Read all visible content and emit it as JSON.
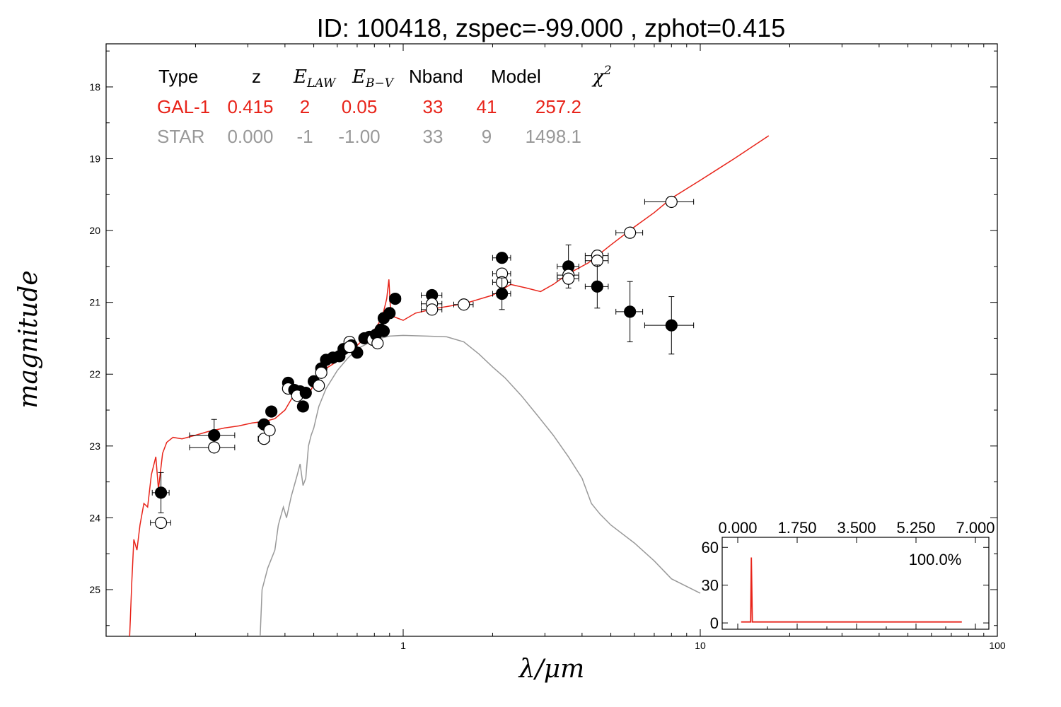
{
  "chart_data": {
    "type": "scatter",
    "title": "ID:  100418, zspec=-99.000 , zphot=0.415",
    "xlabel": "λ/μm",
    "ylabel": "magnitude",
    "xscale": "log",
    "xlim": [
      0.1,
      100
    ],
    "ylim": [
      25.65,
      17.4
    ],
    "x_ticks": [
      "1",
      "10",
      "100"
    ],
    "y_ticks": [
      "18",
      "19",
      "20",
      "21",
      "22",
      "23",
      "24",
      "25"
    ],
    "grid": false,
    "legend_table": {
      "headers": [
        "Type",
        "z",
        "E",
        "LAW",
        "E",
        "B−V",
        "Nband",
        "Model",
        "χ",
        "2"
      ],
      "rows": [
        {
          "cells": [
            "GAL-1",
            "0.415",
            "2",
            "0.05",
            "33",
            "41",
            "257.2"
          ],
          "color": "#e8241a"
        },
        {
          "cells": [
            "STAR",
            "0.000",
            "-1",
            "-1.00",
            "33",
            "9",
            "1498.1"
          ],
          "color": "#999999"
        }
      ]
    },
    "series": [
      {
        "name": "GAL-1",
        "color": "#e8241a",
        "points": [
          [
            0.12,
            25.65
          ],
          [
            0.122,
            24.9
          ],
          [
            0.124,
            24.3
          ],
          [
            0.127,
            24.45
          ],
          [
            0.13,
            24.1
          ],
          [
            0.134,
            23.8
          ],
          [
            0.138,
            23.85
          ],
          [
            0.142,
            23.4
          ],
          [
            0.147,
            23.15
          ],
          [
            0.15,
            23.6
          ],
          [
            0.155,
            23.1
          ],
          [
            0.16,
            22.95
          ],
          [
            0.168,
            22.88
          ],
          [
            0.18,
            22.9
          ],
          [
            0.2,
            22.85
          ],
          [
            0.22,
            22.8
          ],
          [
            0.25,
            22.75
          ],
          [
            0.28,
            22.72
          ],
          [
            0.31,
            22.68
          ],
          [
            0.34,
            22.66
          ],
          [
            0.37,
            22.62
          ],
          [
            0.4,
            22.5
          ],
          [
            0.42,
            22.35
          ],
          [
            0.45,
            22.2
          ],
          [
            0.48,
            22.28
          ],
          [
            0.5,
            22.15
          ],
          [
            0.52,
            22.05
          ],
          [
            0.55,
            21.92
          ],
          [
            0.6,
            21.82
          ],
          [
            0.65,
            21.68
          ],
          [
            0.7,
            21.6
          ],
          [
            0.75,
            21.48
          ],
          [
            0.8,
            21.38
          ],
          [
            0.83,
            21.28
          ],
          [
            0.86,
            21.12
          ],
          [
            0.88,
            20.95
          ],
          [
            0.895,
            20.68
          ],
          [
            0.905,
            21.05
          ],
          [
            0.93,
            21.2
          ],
          [
            1.0,
            21.25
          ],
          [
            1.1,
            21.15
          ],
          [
            1.3,
            21.08
          ],
          [
            1.6,
            21.02
          ],
          [
            2.0,
            20.9
          ],
          [
            2.3,
            20.75
          ],
          [
            2.6,
            20.8
          ],
          [
            2.9,
            20.85
          ],
          [
            3.2,
            20.75
          ],
          [
            3.6,
            20.6
          ],
          [
            4.2,
            20.45
          ],
          [
            5.0,
            20.2
          ],
          [
            6.0,
            19.95
          ],
          [
            7.0,
            19.75
          ],
          [
            8.0,
            19.55
          ],
          [
            10.0,
            19.3
          ],
          [
            13.0,
            19.0
          ],
          [
            17.0,
            18.68
          ]
        ]
      },
      {
        "name": "STAR",
        "color": "#999999",
        "points": [
          [
            0.33,
            25.65
          ],
          [
            0.335,
            25.0
          ],
          [
            0.35,
            24.7
          ],
          [
            0.37,
            24.45
          ],
          [
            0.38,
            24.1
          ],
          [
            0.395,
            23.85
          ],
          [
            0.405,
            24.0
          ],
          [
            0.42,
            23.7
          ],
          [
            0.44,
            23.4
          ],
          [
            0.45,
            23.25
          ],
          [
            0.46,
            23.55
          ],
          [
            0.47,
            23.45
          ],
          [
            0.48,
            23.0
          ],
          [
            0.49,
            22.85
          ],
          [
            0.5,
            22.75
          ],
          [
            0.52,
            22.45
          ],
          [
            0.55,
            22.2
          ],
          [
            0.6,
            21.95
          ],
          [
            0.65,
            21.78
          ],
          [
            0.7,
            21.65
          ],
          [
            0.8,
            21.52
          ],
          [
            0.9,
            21.47
          ],
          [
            1.0,
            21.46
          ],
          [
            1.2,
            21.47
          ],
          [
            1.4,
            21.48
          ],
          [
            1.6,
            21.55
          ],
          [
            1.8,
            21.72
          ],
          [
            2.0,
            21.9
          ],
          [
            2.2,
            22.05
          ],
          [
            2.5,
            22.3
          ],
          [
            2.8,
            22.55
          ],
          [
            3.2,
            22.85
          ],
          [
            3.6,
            23.15
          ],
          [
            4.0,
            23.45
          ],
          [
            4.3,
            23.8
          ],
          [
            4.6,
            23.95
          ],
          [
            5.0,
            24.1
          ],
          [
            6.0,
            24.35
          ],
          [
            7.0,
            24.6
          ],
          [
            8.0,
            24.85
          ],
          [
            10.0,
            25.05
          ]
        ]
      }
    ],
    "observed": [
      {
        "x": 0.153,
        "y": 23.65,
        "xerr": 0.01,
        "yerr": 0.28,
        "open": false
      },
      {
        "x": 0.153,
        "y": 24.07,
        "xerr": 0.012,
        "yerr": 0.0,
        "open": true
      },
      {
        "x": 0.231,
        "y": 22.85,
        "xerr": 0.04,
        "yerr": 0.22,
        "open": false
      },
      {
        "x": 0.231,
        "y": 23.02,
        "xerr": 0.04,
        "yerr": 0.0,
        "open": true
      },
      {
        "x": 0.34,
        "y": 22.7,
        "xerr": 0.015,
        "yerr": 0.0,
        "open": false
      },
      {
        "x": 0.34,
        "y": 22.9,
        "xerr": 0.015,
        "yerr": 0.0,
        "open": true
      },
      {
        "x": 0.36,
        "y": 22.52,
        "xerr": 0.012,
        "yerr": 0.0,
        "open": false
      },
      {
        "x": 0.355,
        "y": 22.78,
        "xerr": 0.012,
        "yerr": 0.0,
        "open": true
      },
      {
        "x": 0.41,
        "y": 22.12,
        "xerr": 0.01,
        "yerr": 0.0,
        "open": false
      },
      {
        "x": 0.41,
        "y": 22.2,
        "xerr": 0.01,
        "yerr": 0.0,
        "open": true
      },
      {
        "x": 0.43,
        "y": 22.22,
        "xerr": 0.01,
        "yerr": 0.0,
        "open": false
      },
      {
        "x": 0.45,
        "y": 22.24,
        "xerr": 0.01,
        "yerr": 0.0,
        "open": false
      },
      {
        "x": 0.46,
        "y": 22.45,
        "xerr": 0.01,
        "yerr": 0.0,
        "open": false
      },
      {
        "x": 0.44,
        "y": 22.3,
        "xerr": 0.01,
        "yerr": 0.0,
        "open": true
      },
      {
        "x": 0.47,
        "y": 22.26,
        "xerr": 0.01,
        "yerr": 0.0,
        "open": false
      },
      {
        "x": 0.5,
        "y": 22.1,
        "xerr": 0.012,
        "yerr": 0.0,
        "open": false
      },
      {
        "x": 0.52,
        "y": 22.16,
        "xerr": 0.012,
        "yerr": 0.0,
        "open": true
      },
      {
        "x": 0.53,
        "y": 21.92,
        "xerr": 0.012,
        "yerr": 0.0,
        "open": false
      },
      {
        "x": 0.53,
        "y": 21.98,
        "xerr": 0.012,
        "yerr": 0.0,
        "open": true
      },
      {
        "x": 0.55,
        "y": 21.8,
        "xerr": 0.012,
        "yerr": 0.0,
        "open": false
      },
      {
        "x": 0.58,
        "y": 21.77,
        "xerr": 0.012,
        "yerr": 0.0,
        "open": false
      },
      {
        "x": 0.61,
        "y": 21.75,
        "xerr": 0.012,
        "yerr": 0.0,
        "open": false
      },
      {
        "x": 0.63,
        "y": 21.65,
        "xerr": 0.012,
        "yerr": 0.0,
        "open": false
      },
      {
        "x": 0.66,
        "y": 21.55,
        "xerr": 0.012,
        "yerr": 0.0,
        "open": true
      },
      {
        "x": 0.67,
        "y": 21.6,
        "xerr": 0.012,
        "yerr": 0.0,
        "open": false
      },
      {
        "x": 0.7,
        "y": 21.7,
        "xerr": 0.015,
        "yerr": 0.0,
        "open": false
      },
      {
        "x": 0.66,
        "y": 21.62,
        "xerr": 0.012,
        "yerr": 0.0,
        "open": true
      },
      {
        "x": 0.74,
        "y": 21.5,
        "xerr": 0.015,
        "yerr": 0.0,
        "open": false
      },
      {
        "x": 0.77,
        "y": 21.48,
        "xerr": 0.015,
        "yerr": 0.0,
        "open": false
      },
      {
        "x": 0.79,
        "y": 21.52,
        "xerr": 0.015,
        "yerr": 0.0,
        "open": true
      },
      {
        "x": 0.81,
        "y": 21.45,
        "xerr": 0.015,
        "yerr": 0.0,
        "open": false
      },
      {
        "x": 0.84,
        "y": 21.38,
        "xerr": 0.015,
        "yerr": 0.0,
        "open": false
      },
      {
        "x": 0.86,
        "y": 21.4,
        "xerr": 0.015,
        "yerr": 0.0,
        "open": false
      },
      {
        "x": 0.82,
        "y": 21.57,
        "xerr": 0.03,
        "yerr": 0.0,
        "open": true
      },
      {
        "x": 0.86,
        "y": 21.22,
        "xerr": 0.015,
        "yerr": 0.0,
        "open": false
      },
      {
        "x": 0.9,
        "y": 21.15,
        "xerr": 0.02,
        "yerr": 0.0,
        "open": false
      },
      {
        "x": 0.94,
        "y": 20.95,
        "xerr": 0.04,
        "yerr": 0.0,
        "open": false
      },
      {
        "x": 1.25,
        "y": 20.9,
        "xerr": 0.1,
        "yerr": 0.0,
        "open": false
      },
      {
        "x": 1.25,
        "y": 21.02,
        "xerr": 0.1,
        "yerr": 0.0,
        "open": true
      },
      {
        "x": 1.25,
        "y": 21.1,
        "xerr": 0.1,
        "yerr": 0.0,
        "open": true
      },
      {
        "x": 1.6,
        "y": 21.03,
        "xerr": 0.12,
        "yerr": 0.0,
        "open": true
      },
      {
        "x": 2.15,
        "y": 20.38,
        "xerr": 0.15,
        "yerr": 0.07,
        "open": false
      },
      {
        "x": 2.15,
        "y": 20.6,
        "xerr": 0.15,
        "yerr": 0.0,
        "open": true
      },
      {
        "x": 2.15,
        "y": 20.72,
        "xerr": 0.15,
        "yerr": 0.0,
        "open": true
      },
      {
        "x": 2.15,
        "y": 20.88,
        "xerr": 0.15,
        "yerr": 0.22,
        "open": false
      },
      {
        "x": 3.6,
        "y": 20.5,
        "xerr": 0.3,
        "yerr": 0.3,
        "open": false
      },
      {
        "x": 3.6,
        "y": 20.62,
        "xerr": 0.3,
        "yerr": 0.0,
        "open": true
      },
      {
        "x": 3.6,
        "y": 20.67,
        "xerr": 0.3,
        "yerr": 0.0,
        "open": true
      },
      {
        "x": 4.5,
        "y": 20.35,
        "xerr": 0.4,
        "yerr": 0.0,
        "open": true
      },
      {
        "x": 4.5,
        "y": 20.42,
        "xerr": 0.4,
        "yerr": 0.0,
        "open": true
      },
      {
        "x": 4.5,
        "y": 20.78,
        "xerr": 0.4,
        "yerr": 0.3,
        "open": false
      },
      {
        "x": 5.8,
        "y": 20.03,
        "xerr": 0.6,
        "yerr": 0.0,
        "open": true
      },
      {
        "x": 5.8,
        "y": 21.13,
        "xerr": 0.6,
        "yerr": 0.42,
        "open": false
      },
      {
        "x": 8.0,
        "y": 19.6,
        "xerr": 1.5,
        "yerr": 0.0,
        "open": true
      },
      {
        "x": 8.0,
        "y": 21.32,
        "xerr": 1.5,
        "yerr": 0.4,
        "open": false
      }
    ],
    "inset": {
      "type": "line",
      "x_ticks": [
        "0.000",
        "1.750",
        "3.500",
        "5.250",
        "7.000"
      ],
      "xlim": [
        0,
        7
      ],
      "y_ticks": [
        "60",
        "30",
        "0"
      ],
      "ylim": [
        -5,
        68
      ],
      "label": "100.0%",
      "color": "#e8241a",
      "points": [
        [
          0.1,
          0.8
        ],
        [
          0.38,
          0.8
        ],
        [
          0.4,
          52
        ],
        [
          0.43,
          0.8
        ],
        [
          6.6,
          0.8
        ]
      ]
    }
  }
}
